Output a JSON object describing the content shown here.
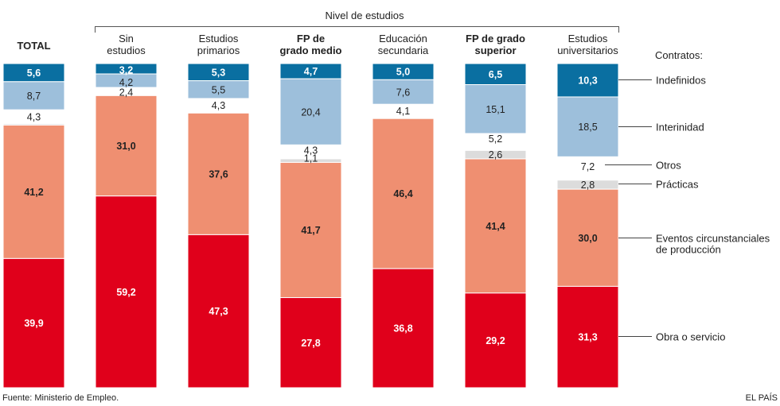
{
  "chart_data": {
    "type": "bar",
    "subtype": "stacked-100",
    "group_title": "Nivel de estudios",
    "legend_title": "Contratos:",
    "categories": [
      {
        "lines": [
          "TOTAL"
        ],
        "bold": true
      },
      {
        "lines": [
          "Sin",
          "estudios"
        ],
        "bold": false
      },
      {
        "lines": [
          "Estudios",
          "primarios"
        ],
        "bold": false
      },
      {
        "lines": [
          "FP de",
          "grado medio"
        ],
        "bold": true
      },
      {
        "lines": [
          "Educación",
          "secundaria"
        ],
        "bold": false
      },
      {
        "lines": [
          "FP de grado",
          "superior"
        ],
        "bold": true
      },
      {
        "lines": [
          "Estudios",
          "universitarios"
        ],
        "bold": false
      }
    ],
    "series": [
      {
        "name": "Indefinidos",
        "legend_lines": [
          "Indefinidos"
        ],
        "color": "#0a6fa1",
        "values": [
          "5,6",
          "3,2",
          "5,3",
          "4,7",
          "5,0",
          "6,5",
          "10,3"
        ]
      },
      {
        "name": "Interinidad",
        "legend_lines": [
          "Interinidad"
        ],
        "color": "#9dbfdb",
        "values": [
          "8,7",
          "4,2",
          "5,5",
          "20,4",
          "7,6",
          "15,1",
          "18,5"
        ]
      },
      {
        "name": "Otros",
        "legend_lines": [
          "Otros"
        ],
        "color": "#ffffff",
        "values": [
          "4,3",
          "2,4",
          "4,3",
          "4,3",
          "4,1",
          "5,2",
          "7,2"
        ]
      },
      {
        "name": "Prácticas",
        "legend_lines": [
          "Prácticas"
        ],
        "color": "#dcdcdc",
        "values": [
          "0,4",
          "0,1",
          "0,2",
          "1,1",
          "0,3",
          "2,6",
          "2,8"
        ]
      },
      {
        "name": "Eventos circunstanciales de producción",
        "legend_lines": [
          "Eventos circunstanciales",
          "de producción"
        ],
        "color": "#ef8f71",
        "values": [
          "41,2",
          "31,0",
          "37,6",
          "41,7",
          "46,4",
          "41,4",
          "30,0"
        ]
      },
      {
        "name": "Obra o servicio",
        "legend_lines": [
          "Obra o servicio"
        ],
        "color": "#e0001b",
        "values": [
          "39,9",
          "59,2",
          "47,3",
          "27,8",
          "36,8",
          "29,2",
          "31,3"
        ]
      }
    ],
    "data_labels": [
      [
        "5,6",
        "8,7",
        "4,3",
        "",
        "41,2",
        "39,9"
      ],
      [
        "3,2",
        "4,2",
        "2,4",
        "",
        "31,0",
        "59,2"
      ],
      [
        "5,3",
        "5,5",
        "4,3",
        "",
        "37,6",
        "47,3"
      ],
      [
        "4,7",
        "20,4",
        "4,3",
        "1,1",
        "41,7",
        "27,8"
      ],
      [
        "5,0",
        "7,6",
        "4,1",
        "",
        "46,4",
        "36,8"
      ],
      [
        "6,5",
        "15,1",
        "5,2",
        "2,6",
        "41,4",
        "29,2"
      ],
      [
        "10,3",
        "18,5",
        "7,2",
        "2,8",
        "30,0",
        "31,3"
      ]
    ],
    "ylim": [
      0,
      100
    ]
  },
  "source": "Fuente: Ministerio de Empleo.",
  "credit": "EL PAÍS"
}
